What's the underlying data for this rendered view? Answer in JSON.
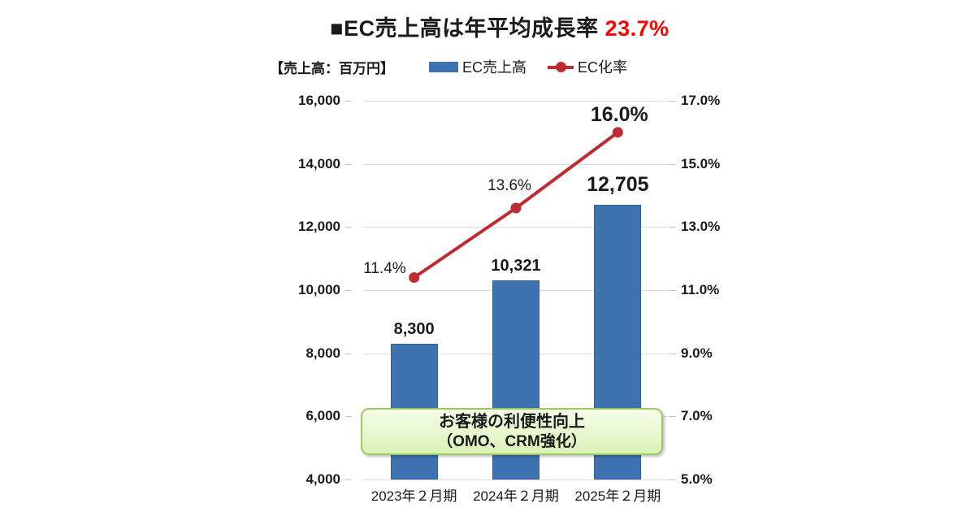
{
  "title": {
    "text": "■EC売上高は年平均成長率",
    "highlight": " 23.7%",
    "highlight_color": "#ff0000"
  },
  "unit_label": "【売上高：百万円】",
  "legend": {
    "items": [
      {
        "label": "EC売上高",
        "marker": "bar",
        "color": "#3e72b0"
      },
      {
        "label": "EC化率",
        "marker": "line",
        "color": "#be2b32"
      }
    ]
  },
  "annotation": {
    "line1": "お客様の利便性向上",
    "line2": "（OMO、CRM強化）"
  },
  "colors": {
    "bar_fill": "#3e72b0",
    "bar_border": "#2f5f9f",
    "line": "#be2b32",
    "grid": "#dcdcdc",
    "tick": "#bfbfbf",
    "title_highlight": "#ff0000"
  },
  "chart_data": {
    "type": "bar",
    "subtype": "combo-bar-line-dual-axis",
    "title": "■EC売上高は年平均成長率 23.7%",
    "categories": [
      "2023年２月期",
      "2024年２月期",
      "2025年２月期"
    ],
    "series": [
      {
        "name": "EC売上高",
        "type": "bar",
        "axis": "left",
        "values": [
          8300,
          10321,
          12705
        ],
        "labels": [
          "8,300",
          "10,321",
          "12,705"
        ],
        "color": "#3e72b0"
      },
      {
        "name": "EC化率",
        "type": "line",
        "axis": "right",
        "values": [
          11.4,
          13.6,
          16.0
        ],
        "labels": [
          "11.4%",
          "13.6%",
          "16.0%"
        ],
        "color": "#be2b32"
      }
    ],
    "left_axis": {
      "title": "【売上高：百万円】",
      "min": 4000,
      "max": 16000,
      "step": 2000,
      "tick_labels": [
        "4,000",
        "6,000",
        "8,000",
        "10,000",
        "12,000",
        "14,000",
        "16,000"
      ]
    },
    "right_axis": {
      "min": 5.0,
      "max": 17.0,
      "step": 2.0,
      "tick_labels": [
        "5.0%",
        "7.0%",
        "9.0%",
        "11.0%",
        "13.0%",
        "15.0%",
        "17.0%"
      ]
    },
    "grid": true,
    "legend_position": "top",
    "annotation": "お客様の利便性向上（OMO、CRM強化）"
  }
}
